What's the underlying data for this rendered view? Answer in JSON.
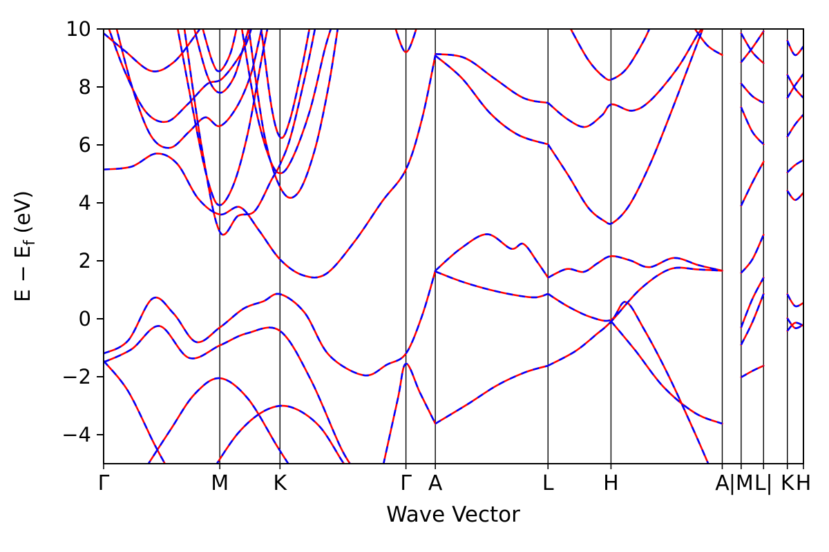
{
  "figure": {
    "title": "",
    "xlabel": "Wave Vector",
    "ylabel_prefix": "E − E",
    "ylabel_sub": "f",
    "ylabel_suffix": " (eV)",
    "background": "#ffffff",
    "axis_color": "#000000"
  },
  "chart_data": {
    "type": "line",
    "subtype": "electronic-band-structure",
    "title": "",
    "xlabel": "Wave Vector",
    "ylabel": "E − E_f (eV)",
    "ylim": [
      -5,
      10
    ],
    "yticks": [
      -4,
      -2,
      0,
      2,
      4,
      6,
      8,
      10
    ],
    "grid": false,
    "legend": null,
    "series": [
      {
        "name": "red-solid",
        "color": "#ff0000",
        "line_style": "solid",
        "width": 2.6
      },
      {
        "name": "blue-dashed-overlay",
        "color": "#0000ff",
        "line_style": "dashed",
        "dash": "9 9",
        "width": 2.6
      }
    ],
    "xticks": [
      {
        "label": "Γ",
        "x": 0.0
      },
      {
        "label": "M",
        "x": 0.166
      },
      {
        "label": "K",
        "x": 0.252
      },
      {
        "label": "Γ",
        "x": 0.432
      },
      {
        "label": "A",
        "x": 0.474
      },
      {
        "label": "L",
        "x": 0.635
      },
      {
        "label": "H",
        "x": 0.725
      },
      {
        "label": "A",
        "x": 0.884
      },
      {
        "label": "|M",
        "x": 0.911
      },
      {
        "label": "L|",
        "x": 0.943
      },
      {
        "label": "K",
        "x": 0.977
      },
      {
        "label": "H",
        "x": 1.0
      }
    ],
    "bands": [
      [
        [
          0.0,
          5.15
        ],
        [
          0.04,
          5.25
        ],
        [
          0.075,
          5.7
        ],
        [
          0.105,
          5.35
        ],
        [
          0.135,
          4.15
        ],
        [
          0.166,
          3.6
        ],
        [
          0.195,
          3.85
        ],
        [
          0.222,
          3.05
        ],
        [
          0.252,
          2.05
        ],
        [
          0.285,
          1.5
        ],
        [
          0.318,
          1.55
        ],
        [
          0.358,
          2.65
        ],
        [
          0.398,
          4.05
        ],
        [
          0.432,
          5.15
        ],
        [
          0.455,
          6.9
        ],
        [
          0.474,
          9.1
        ]
      ],
      [
        [
          0.0,
          -1.2
        ],
        [
          0.035,
          -0.75
        ],
        [
          0.07,
          0.7
        ],
        [
          0.1,
          0.18
        ],
        [
          0.132,
          -0.8
        ],
        [
          0.166,
          -0.3
        ],
        [
          0.2,
          0.35
        ],
        [
          0.228,
          0.6
        ],
        [
          0.252,
          0.85
        ],
        [
          0.287,
          0.22
        ],
        [
          0.322,
          -1.25
        ],
        [
          0.372,
          -1.95
        ],
        [
          0.405,
          -1.58
        ],
        [
          0.432,
          -1.2
        ],
        [
          0.455,
          0.1
        ],
        [
          0.474,
          1.66
        ]
      ],
      [
        [
          0.0,
          -1.5
        ],
        [
          0.04,
          -1.05
        ],
        [
          0.08,
          -0.25
        ],
        [
          0.122,
          -1.35
        ],
        [
          0.166,
          -0.92
        ],
        [
          0.205,
          -0.5
        ],
        [
          0.252,
          -0.42
        ],
        [
          0.296,
          -2.1
        ],
        [
          0.34,
          -4.5
        ],
        [
          0.366,
          -5.45
        ]
      ],
      [
        [
          0.396,
          -5.45
        ],
        [
          0.42,
          -2.8
        ],
        [
          0.432,
          -1.55
        ],
        [
          0.452,
          -2.55
        ],
        [
          0.474,
          -3.62
        ]
      ],
      [
        [
          0.0,
          -1.45
        ],
        [
          0.035,
          -2.5
        ],
        [
          0.072,
          -4.3
        ],
        [
          0.098,
          -5.45
        ]
      ],
      [
        [
          0.052,
          -5.45
        ],
        [
          0.095,
          -3.85
        ],
        [
          0.13,
          -2.6
        ],
        [
          0.166,
          -2.05
        ],
        [
          0.206,
          -2.75
        ],
        [
          0.248,
          -4.4
        ],
        [
          0.276,
          -5.45
        ]
      ],
      [
        [
          0.15,
          -5.45
        ],
        [
          0.192,
          -3.95
        ],
        [
          0.232,
          -3.15
        ],
        [
          0.268,
          -3.05
        ],
        [
          0.308,
          -3.7
        ],
        [
          0.342,
          -4.95
        ],
        [
          0.358,
          -5.45
        ]
      ],
      [
        [
          0.196,
          10.25
        ],
        [
          0.216,
          7.4
        ],
        [
          0.236,
          5.6
        ],
        [
          0.252,
          5.02
        ],
        [
          0.27,
          5.55
        ],
        [
          0.295,
          7.2
        ],
        [
          0.316,
          9.3
        ],
        [
          0.328,
          10.25
        ]
      ],
      [
        [
          0.206,
          10.25
        ],
        [
          0.23,
          6.3
        ],
        [
          0.255,
          4.42
        ],
        [
          0.278,
          4.35
        ],
        [
          0.302,
          5.85
        ],
        [
          0.322,
          8.1
        ],
        [
          0.336,
          10.25
        ]
      ],
      [
        [
          0.224,
          10.25
        ],
        [
          0.24,
          7.3
        ],
        [
          0.253,
          6.25
        ],
        [
          0.266,
          6.85
        ],
        [
          0.282,
          8.5
        ],
        [
          0.296,
          10.25
        ]
      ],
      [
        [
          0.104,
          10.25
        ],
        [
          0.134,
          6.4
        ],
        [
          0.151,
          4.6
        ],
        [
          0.166,
          3.92
        ],
        [
          0.186,
          4.65
        ],
        [
          0.206,
          6.4
        ],
        [
          0.226,
          9.0
        ],
        [
          0.236,
          10.25
        ]
      ],
      [
        [
          0.114,
          10.25
        ],
        [
          0.141,
          5.8
        ],
        [
          0.166,
          3.0
        ],
        [
          0.192,
          3.55
        ],
        [
          0.216,
          3.72
        ],
        [
          0.24,
          4.8
        ],
        [
          0.252,
          5.32
        ],
        [
          0.268,
          6.35
        ],
        [
          0.29,
          8.6
        ],
        [
          0.304,
          10.25
        ]
      ],
      [
        [
          0.127,
          10.25
        ],
        [
          0.148,
          8.4
        ],
        [
          0.166,
          7.8
        ],
        [
          0.186,
          8.32
        ],
        [
          0.2,
          9.4
        ],
        [
          0.21,
          10.25
        ]
      ],
      [
        [
          0.139,
          10.25
        ],
        [
          0.155,
          8.9
        ],
        [
          0.166,
          8.55
        ],
        [
          0.181,
          9.15
        ],
        [
          0.192,
          10.25
        ]
      ],
      [
        [
          0.004,
          10.25
        ],
        [
          0.03,
          8.55
        ],
        [
          0.06,
          7.15
        ],
        [
          0.09,
          6.8
        ],
        [
          0.12,
          7.4
        ],
        [
          0.148,
          8.1
        ],
        [
          0.17,
          8.3
        ],
        [
          0.2,
          9.3
        ],
        [
          0.214,
          10.25
        ]
      ],
      [
        [
          0.0,
          9.85
        ],
        [
          0.03,
          9.25
        ],
        [
          0.068,
          8.55
        ],
        [
          0.1,
          8.85
        ],
        [
          0.13,
          9.75
        ],
        [
          0.144,
          10.25
        ]
      ],
      [
        [
          0.016,
          10.25
        ],
        [
          0.042,
          7.9
        ],
        [
          0.068,
          6.3
        ],
        [
          0.095,
          5.9
        ],
        [
          0.122,
          6.45
        ],
        [
          0.145,
          6.95
        ],
        [
          0.166,
          6.65
        ],
        [
          0.19,
          7.3
        ],
        [
          0.21,
          8.4
        ],
        [
          0.222,
          9.6
        ],
        [
          0.228,
          10.25
        ]
      ],
      [
        [
          0.414,
          10.25
        ],
        [
          0.432,
          9.2
        ],
        [
          0.45,
          10.25
        ]
      ],
      [
        [
          0.474,
          1.66
        ],
        [
          0.51,
          2.42
        ],
        [
          0.548,
          2.92
        ],
        [
          0.582,
          2.42
        ],
        [
          0.6,
          2.58
        ],
        [
          0.62,
          1.95
        ],
        [
          0.635,
          1.42
        ]
      ],
      [
        [
          0.474,
          1.63
        ],
        [
          0.512,
          1.28
        ],
        [
          0.552,
          1.0
        ],
        [
          0.592,
          0.8
        ],
        [
          0.618,
          0.74
        ],
        [
          0.635,
          0.86
        ]
      ],
      [
        [
          0.474,
          -3.62
        ],
        [
          0.52,
          -2.95
        ],
        [
          0.562,
          -2.3
        ],
        [
          0.602,
          -1.85
        ],
        [
          0.635,
          -1.62
        ]
      ],
      [
        [
          0.474,
          9.08
        ],
        [
          0.512,
          8.3
        ],
        [
          0.552,
          7.1
        ],
        [
          0.592,
          6.35
        ],
        [
          0.635,
          6.02
        ]
      ],
      [
        [
          0.474,
          9.14
        ],
        [
          0.516,
          9.0
        ],
        [
          0.558,
          8.3
        ],
        [
          0.6,
          7.62
        ],
        [
          0.635,
          7.45
        ]
      ],
      [
        [
          0.635,
          1.42
        ],
        [
          0.662,
          1.72
        ],
        [
          0.686,
          1.62
        ],
        [
          0.706,
          1.92
        ],
        [
          0.725,
          2.16
        ],
        [
          0.752,
          2.02
        ],
        [
          0.78,
          1.78
        ],
        [
          0.815,
          2.1
        ],
        [
          0.85,
          1.85
        ],
        [
          0.884,
          1.66
        ]
      ],
      [
        [
          0.635,
          0.86
        ],
        [
          0.664,
          0.42
        ],
        [
          0.696,
          0.06
        ],
        [
          0.725,
          -0.04
        ],
        [
          0.746,
          0.58
        ],
        [
          0.772,
          -0.35
        ],
        [
          0.808,
          -2.0
        ],
        [
          0.845,
          -3.95
        ],
        [
          0.872,
          -5.45
        ]
      ],
      [
        [
          0.635,
          -1.62
        ],
        [
          0.674,
          -1.12
        ],
        [
          0.705,
          -0.52
        ],
        [
          0.725,
          -0.1
        ],
        [
          0.768,
          1.05
        ],
        [
          0.81,
          1.72
        ],
        [
          0.85,
          1.7
        ],
        [
          0.884,
          1.66
        ]
      ],
      [
        [
          0.725,
          -0.08
        ],
        [
          0.76,
          -1.1
        ],
        [
          0.8,
          -2.35
        ],
        [
          0.845,
          -3.25
        ],
        [
          0.884,
          -3.62
        ]
      ],
      [
        [
          0.635,
          6.02
        ],
        [
          0.664,
          4.95
        ],
        [
          0.692,
          3.85
        ],
        [
          0.715,
          3.38
        ],
        [
          0.728,
          3.32
        ],
        [
          0.752,
          3.95
        ],
        [
          0.782,
          5.4
        ],
        [
          0.812,
          7.2
        ],
        [
          0.842,
          9.1
        ],
        [
          0.86,
          10.25
        ]
      ],
      [
        [
          0.635,
          7.45
        ],
        [
          0.662,
          6.9
        ],
        [
          0.688,
          6.62
        ],
        [
          0.712,
          7.02
        ],
        [
          0.726,
          7.4
        ],
        [
          0.755,
          7.18
        ],
        [
          0.782,
          7.55
        ],
        [
          0.82,
          8.65
        ],
        [
          0.85,
          9.85
        ],
        [
          0.864,
          10.25
        ]
      ],
      [
        [
          0.662,
          10.25
        ],
        [
          0.692,
          8.95
        ],
        [
          0.716,
          8.32
        ],
        [
          0.728,
          8.28
        ],
        [
          0.748,
          8.65
        ],
        [
          0.772,
          9.6
        ],
        [
          0.784,
          10.25
        ]
      ],
      [
        [
          0.838,
          10.25
        ],
        [
          0.862,
          9.45
        ],
        [
          0.884,
          9.1
        ]
      ],
      [
        [
          0.911,
          -2.02
        ],
        [
          0.927,
          -1.8
        ],
        [
          0.943,
          -1.62
        ]
      ],
      [
        [
          0.911,
          -0.9
        ],
        [
          0.927,
          -0.12
        ],
        [
          0.943,
          0.86
        ]
      ],
      [
        [
          0.911,
          -0.3
        ],
        [
          0.927,
          0.68
        ],
        [
          0.943,
          1.42
        ]
      ],
      [
        [
          0.911,
          7.3
        ],
        [
          0.927,
          6.45
        ],
        [
          0.943,
          6.02
        ]
      ],
      [
        [
          0.911,
          8.12
        ],
        [
          0.927,
          7.68
        ],
        [
          0.943,
          7.45
        ]
      ],
      [
        [
          0.911,
          9.85
        ],
        [
          0.927,
          9.2
        ],
        [
          0.943,
          8.82
        ]
      ],
      [
        [
          0.911,
          8.85
        ],
        [
          0.927,
          9.35
        ],
        [
          0.943,
          9.92
        ]
      ],
      [
        [
          0.911,
          1.58
        ],
        [
          0.927,
          2.05
        ],
        [
          0.943,
          2.9
        ]
      ],
      [
        [
          0.911,
          3.9
        ],
        [
          0.927,
          4.7
        ],
        [
          0.943,
          5.42
        ]
      ],
      [
        [
          0.977,
          -0.42
        ],
        [
          0.988,
          -0.14
        ],
        [
          1.0,
          -0.24
        ]
      ],
      [
        [
          0.977,
          0.02
        ],
        [
          0.988,
          -0.32
        ],
        [
          1.0,
          -0.2
        ]
      ],
      [
        [
          0.977,
          0.85
        ],
        [
          0.988,
          0.44
        ],
        [
          1.0,
          0.55
        ]
      ],
      [
        [
          0.977,
          4.42
        ],
        [
          0.988,
          4.1
        ],
        [
          1.0,
          4.35
        ]
      ],
      [
        [
          0.977,
          5.05
        ],
        [
          0.988,
          5.3
        ],
        [
          1.0,
          5.48
        ]
      ],
      [
        [
          0.977,
          6.28
        ],
        [
          0.988,
          6.7
        ],
        [
          1.0,
          7.05
        ]
      ],
      [
        [
          0.977,
          7.62
        ],
        [
          0.988,
          8.05
        ],
        [
          1.0,
          8.45
        ]
      ],
      [
        [
          0.977,
          8.42
        ],
        [
          0.988,
          7.95
        ],
        [
          1.0,
          7.62
        ]
      ],
      [
        [
          0.977,
          9.6
        ],
        [
          0.988,
          9.1
        ],
        [
          1.0,
          9.4
        ]
      ]
    ]
  }
}
